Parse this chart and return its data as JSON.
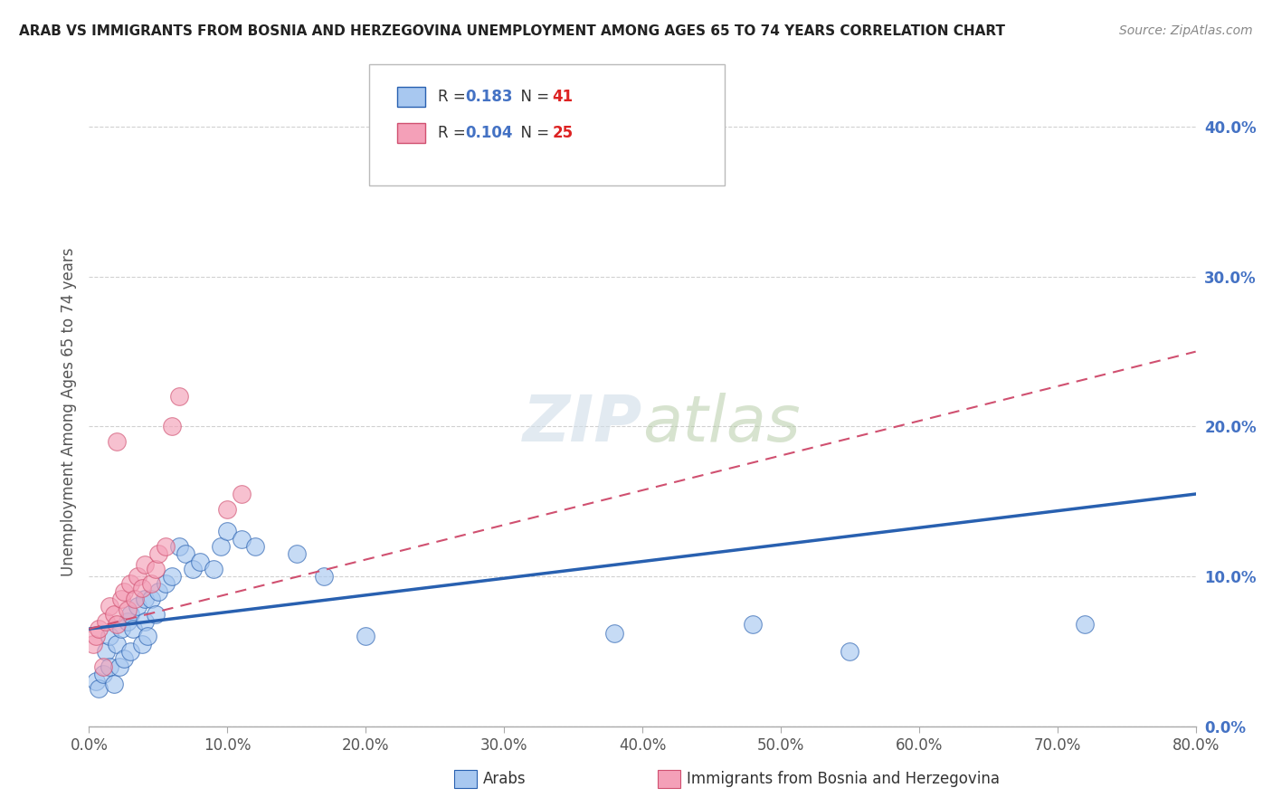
{
  "title": "ARAB VS IMMIGRANTS FROM BOSNIA AND HERZEGOVINA UNEMPLOYMENT AMONG AGES 65 TO 74 YEARS CORRELATION CHART",
  "source": "Source: ZipAtlas.com",
  "ylabel": "Unemployment Among Ages 65 to 74 years",
  "legend_label1": "Arabs",
  "legend_label2": "Immigrants from Bosnia and Herzegovina",
  "R1": 0.183,
  "N1": 41,
  "R2": 0.104,
  "N2": 25,
  "color_arab": "#a8c8f0",
  "color_bosnia": "#f4a0b8",
  "color_arab_line": "#2860b0",
  "color_bosnia_line": "#d05070",
  "xlim": [
    0.0,
    0.8
  ],
  "ylim": [
    0.0,
    0.42
  ],
  "xticks": [
    0.0,
    0.1,
    0.2,
    0.3,
    0.4,
    0.5,
    0.6,
    0.7,
    0.8
  ],
  "yticks": [
    0.0,
    0.1,
    0.2,
    0.3,
    0.4
  ],
  "arab_x": [
    0.005,
    0.007,
    0.01,
    0.012,
    0.015,
    0.015,
    0.018,
    0.02,
    0.022,
    0.023,
    0.025,
    0.028,
    0.03,
    0.03,
    0.032,
    0.035,
    0.038,
    0.04,
    0.04,
    0.042,
    0.045,
    0.048,
    0.05,
    0.055,
    0.06,
    0.065,
    0.07,
    0.075,
    0.08,
    0.09,
    0.095,
    0.1,
    0.11,
    0.12,
    0.15,
    0.17,
    0.2,
    0.38,
    0.48,
    0.55,
    0.72
  ],
  "arab_y": [
    0.03,
    0.025,
    0.035,
    0.05,
    0.04,
    0.06,
    0.028,
    0.055,
    0.04,
    0.065,
    0.045,
    0.07,
    0.05,
    0.075,
    0.065,
    0.08,
    0.055,
    0.07,
    0.085,
    0.06,
    0.085,
    0.075,
    0.09,
    0.095,
    0.1,
    0.12,
    0.115,
    0.105,
    0.11,
    0.105,
    0.12,
    0.13,
    0.125,
    0.12,
    0.115,
    0.1,
    0.06,
    0.062,
    0.068,
    0.05,
    0.068
  ],
  "bosnia_x": [
    0.003,
    0.005,
    0.007,
    0.01,
    0.012,
    0.015,
    0.018,
    0.02,
    0.023,
    0.025,
    0.028,
    0.03,
    0.033,
    0.035,
    0.038,
    0.04,
    0.045,
    0.048,
    0.05,
    0.055,
    0.06,
    0.065,
    0.1,
    0.11,
    0.02
  ],
  "bosnia_y": [
    0.055,
    0.06,
    0.065,
    0.04,
    0.07,
    0.08,
    0.075,
    0.068,
    0.085,
    0.09,
    0.078,
    0.095,
    0.085,
    0.1,
    0.092,
    0.108,
    0.095,
    0.105,
    0.115,
    0.12,
    0.2,
    0.22,
    0.145,
    0.155,
    0.19
  ],
  "background_color": "#ffffff",
  "grid_color": "#cccccc"
}
